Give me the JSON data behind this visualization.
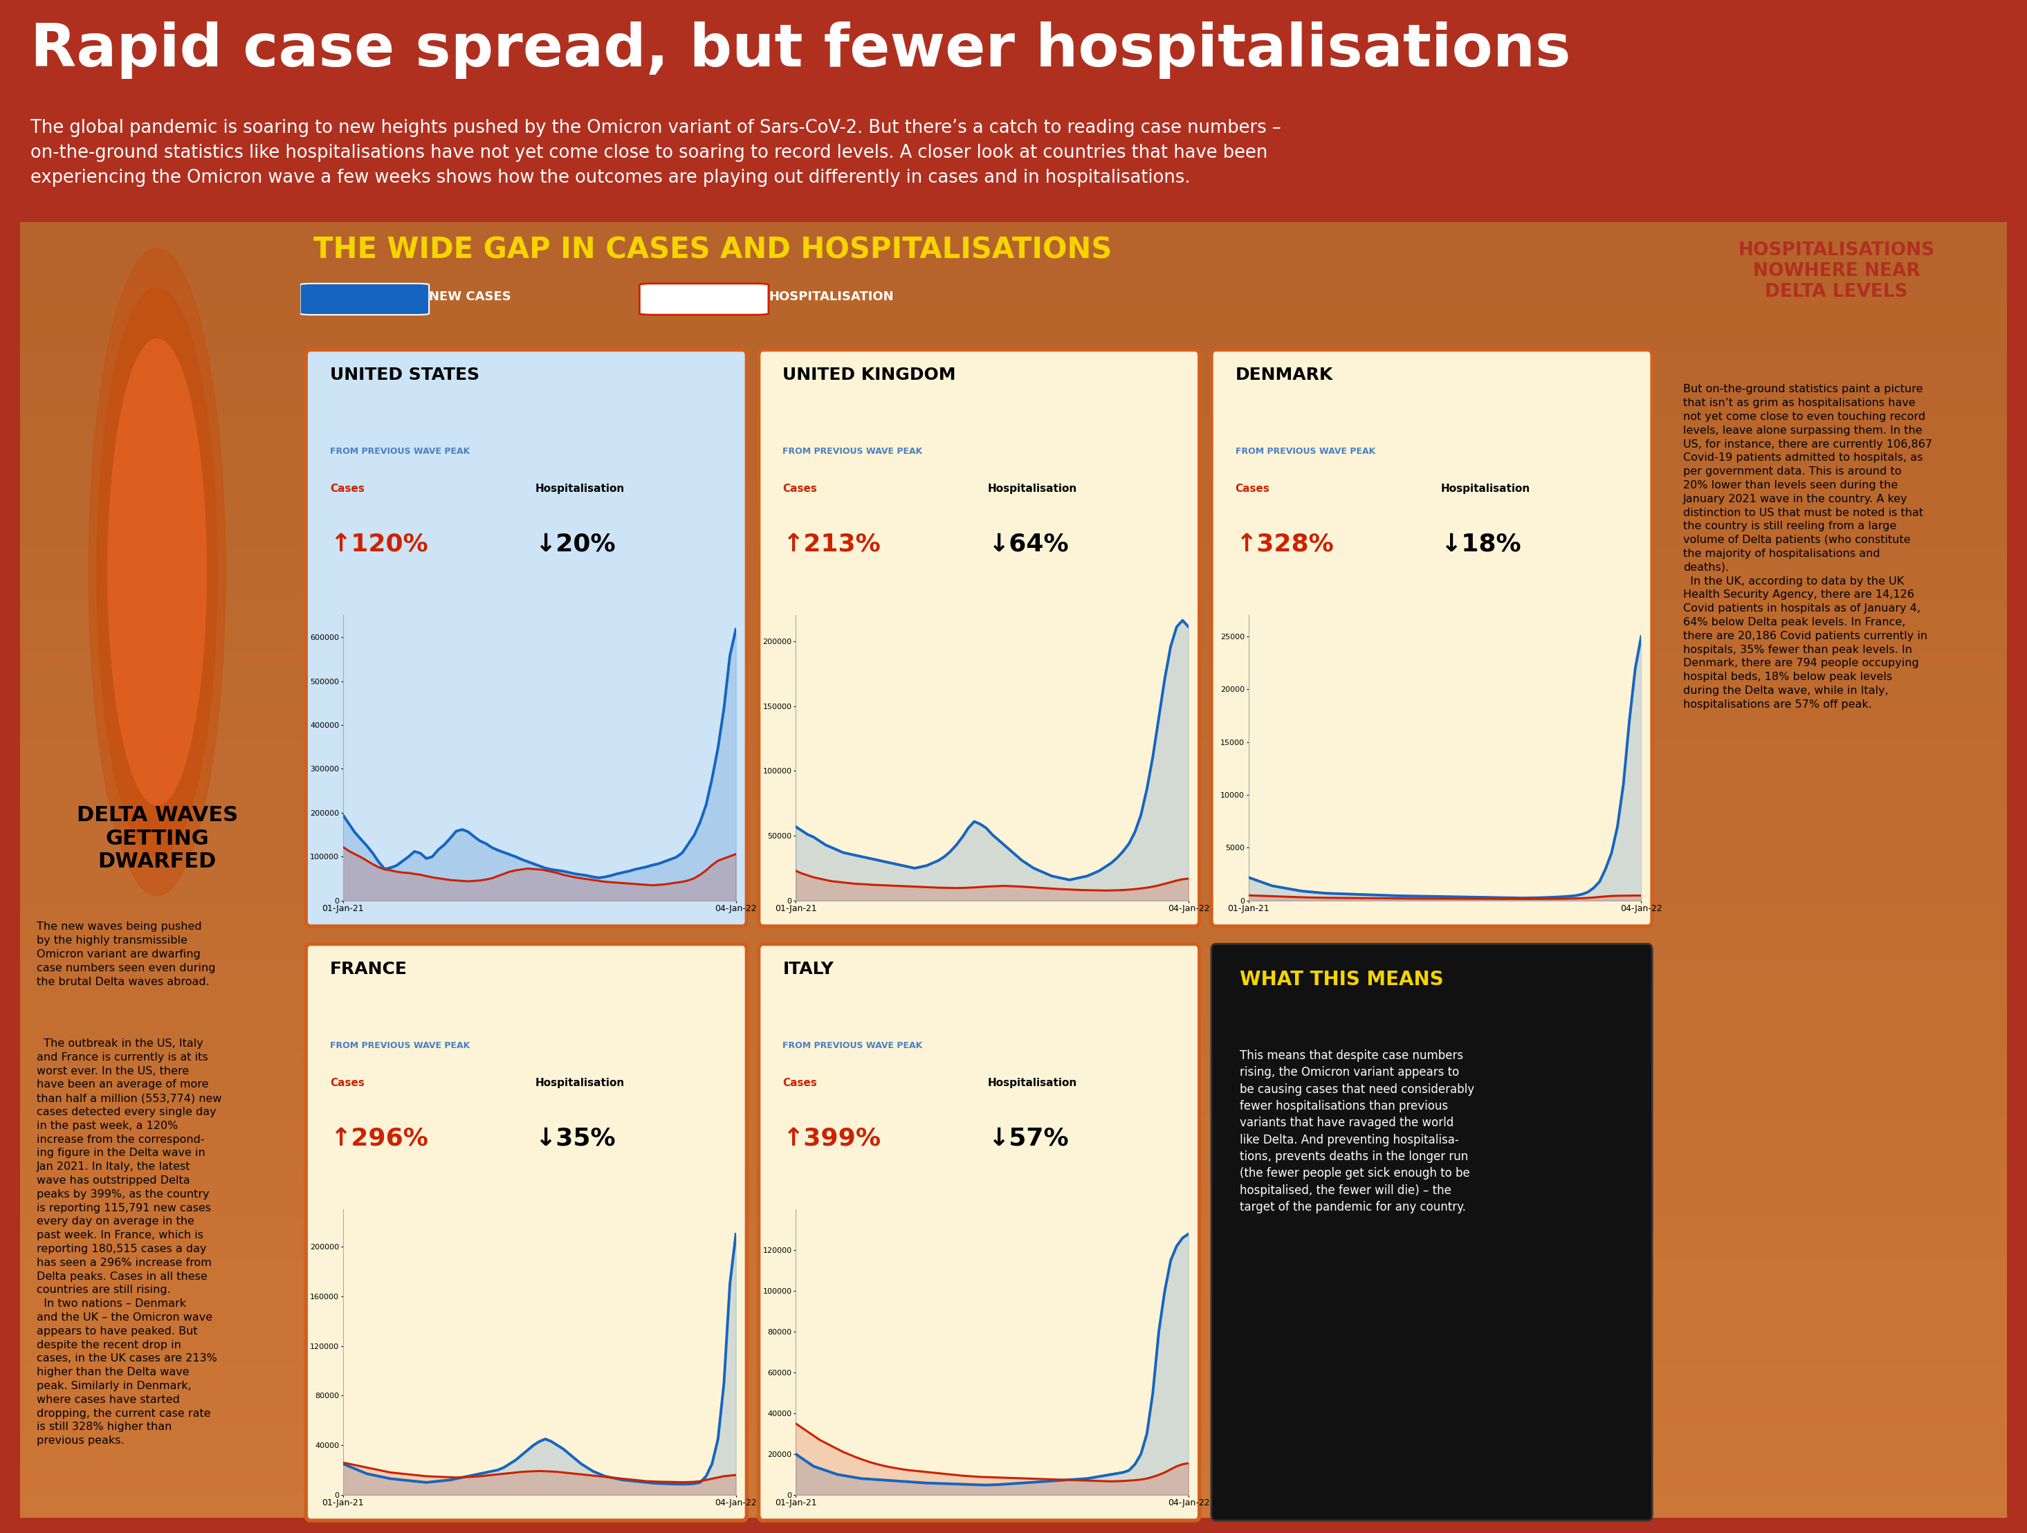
{
  "title": "Rapid case spread, but fewer hospitalisations",
  "subtitle": "The global pandemic is soaring to new heights pushed by the Omicron variant of Sars-CoV-2. But there’s a catch to reading case numbers –\non-the-ground statistics like hospitalisations have not yet come close to soaring to record levels. A closer look at countries that have been\nexperiencing the Omicron wave a few weeks shows how the outcomes are playing out differently in cases and in hospitalisations.",
  "section_title": "THE WIDE GAP IN CASES AND HOSPITALISATIONS",
  "legend_cases": "NEW CASES",
  "legend_hosp": "HOSPITALISATION",
  "bg_main": "#b03020",
  "bg_chart_blue": "#cce4f5",
  "bg_chart_yellow": "#fdf4d8",
  "bg_left": "#f5e8cc",
  "bg_right": "#f5e8cc",
  "bg_black": "#111111",
  "countries": [
    {
      "name": "UNITED STATES",
      "flag": "US",
      "cases_pct": "120%",
      "hosp_pct": "20%",
      "cases_up": true,
      "hosp_up": false,
      "ylim": [
        0,
        650000
      ],
      "yticks": [
        0,
        100000,
        200000,
        300000,
        400000,
        500000,
        600000
      ],
      "bg": "#cce4f5",
      "new_cases": [
        195000,
        175000,
        155000,
        140000,
        125000,
        108000,
        88000,
        72000,
        75000,
        80000,
        90000,
        100000,
        112000,
        108000,
        96000,
        100000,
        116000,
        127000,
        142000,
        158000,
        162000,
        157000,
        146000,
        136000,
        130000,
        121000,
        115000,
        110000,
        105000,
        100000,
        94000,
        89000,
        84000,
        79000,
        74000,
        71000,
        69000,
        67000,
        64000,
        61000,
        59000,
        57000,
        54000,
        52000,
        54000,
        57000,
        61000,
        64000,
        67000,
        71000,
        74000,
        77000,
        81000,
        84000,
        89000,
        94000,
        99000,
        109000,
        129000,
        149000,
        179000,
        218000,
        278000,
        348000,
        438000,
        558000,
        618000
      ],
      "hosp": [
        122000,
        113000,
        106000,
        99000,
        91000,
        83000,
        76000,
        71000,
        69000,
        66000,
        64000,
        63000,
        61000,
        59000,
        56000,
        53000,
        51000,
        49000,
        47000,
        46000,
        45000,
        44000,
        45000,
        46000,
        48000,
        51000,
        56000,
        61000,
        66000,
        69000,
        71000,
        73000,
        72000,
        71000,
        69000,
        66000,
        63000,
        59000,
        56000,
        53000,
        51000,
        49000,
        47000,
        45000,
        43000,
        42000,
        41000,
        40000,
        39000,
        38000,
        37000,
        36000,
        35000,
        36000,
        37000,
        39000,
        41000,
        43000,
        46000,
        51000,
        59000,
        69000,
        81000,
        91000,
        96000,
        101000,
        106000
      ]
    },
    {
      "name": "UNITED KINGDOM",
      "flag": "UK",
      "cases_pct": "213%",
      "hosp_pct": "64%",
      "cases_up": true,
      "hosp_up": false,
      "ylim": [
        0,
        220000
      ],
      "yticks": [
        0,
        50000,
        100000,
        150000,
        200000
      ],
      "bg": "#fdf4d8",
      "new_cases": [
        57000,
        54000,
        51000,
        49000,
        46000,
        43000,
        41000,
        39000,
        37000,
        36000,
        35000,
        34000,
        33000,
        32000,
        31000,
        30000,
        29000,
        28000,
        27000,
        26000,
        25000,
        26000,
        27000,
        29000,
        31000,
        34000,
        38000,
        43000,
        49000,
        56000,
        61000,
        59000,
        56000,
        51000,
        47000,
        43000,
        39000,
        35000,
        31000,
        28000,
        25000,
        23000,
        21000,
        19000,
        18000,
        17000,
        16000,
        17000,
        18000,
        19000,
        21000,
        23000,
        26000,
        29000,
        33000,
        38000,
        44000,
        53000,
        66000,
        86000,
        111000,
        141000,
        171000,
        196000,
        211000,
        216000,
        211000
      ],
      "hosp": [
        23000,
        21000,
        19500,
        18000,
        17000,
        16000,
        15000,
        14500,
        14000,
        13500,
        13000,
        12800,
        12500,
        12200,
        12000,
        11800,
        11600,
        11400,
        11200,
        11000,
        10800,
        10600,
        10400,
        10200,
        10000,
        9900,
        9800,
        9700,
        9800,
        10000,
        10200,
        10500,
        10800,
        11000,
        11200,
        11400,
        11200,
        11000,
        10800,
        10500,
        10200,
        9900,
        9600,
        9300,
        9000,
        8800,
        8600,
        8400,
        8200,
        8100,
        8000,
        7900,
        7800,
        7900,
        8000,
        8200,
        8500,
        8900,
        9400,
        10000,
        10800,
        11800,
        13000,
        14200,
        15500,
        16500,
        17000
      ]
    },
    {
      "name": "DENMARK",
      "flag": "DK",
      "cases_pct": "328%",
      "hosp_pct": "18%",
      "cases_up": true,
      "hosp_up": false,
      "ylim": [
        0,
        27000
      ],
      "yticks": [
        0,
        5000,
        10000,
        15000,
        20000,
        25000
      ],
      "bg": "#fdf4d8",
      "new_cases": [
        2200,
        2000,
        1800,
        1600,
        1400,
        1300,
        1200,
        1100,
        1000,
        900,
        850,
        800,
        750,
        700,
        680,
        660,
        640,
        620,
        600,
        580,
        560,
        540,
        520,
        500,
        480,
        460,
        450,
        440,
        430,
        420,
        410,
        400,
        390,
        380,
        370,
        360,
        350,
        340,
        330,
        320,
        310,
        300,
        290,
        280,
        270,
        260,
        250,
        260,
        270,
        280,
        300,
        320,
        350,
        380,
        420,
        480,
        600,
        800,
        1200,
        1800,
        3000,
        4500,
        7000,
        11000,
        17000,
        22000,
        25000
      ],
      "hosp": [
        500,
        480,
        460,
        440,
        420,
        400,
        380,
        360,
        340,
        320,
        305,
        290,
        280,
        270,
        265,
        260,
        255,
        250,
        245,
        240,
        235,
        230,
        225,
        220,
        215,
        210,
        205,
        200,
        198,
        196,
        194,
        192,
        190,
        188,
        186,
        184,
        182,
        180,
        178,
        176,
        174,
        172,
        170,
        168,
        166,
        164,
        162,
        160,
        162,
        165,
        168,
        172,
        178,
        185,
        195,
        210,
        230,
        260,
        300,
        350,
        400,
        440,
        460,
        470,
        475,
        480,
        485
      ]
    },
    {
      "name": "FRANCE",
      "flag": "FR",
      "cases_pct": "296%",
      "hosp_pct": "35%",
      "cases_up": true,
      "hosp_up": false,
      "ylim": [
        0,
        230000
      ],
      "yticks": [
        0,
        40000,
        80000,
        120000,
        160000,
        200000
      ],
      "bg": "#fdf4d8",
      "new_cases": [
        25000,
        23000,
        21000,
        19000,
        17000,
        16000,
        15000,
        14000,
        13000,
        12500,
        12000,
        11500,
        11000,
        10500,
        10000,
        10500,
        11000,
        11500,
        12000,
        13000,
        14000,
        15000,
        16000,
        17000,
        18000,
        19000,
        20000,
        22000,
        25000,
        28000,
        32000,
        36000,
        40000,
        43000,
        45000,
        43000,
        40000,
        37000,
        33000,
        29000,
        25000,
        22000,
        19000,
        17000,
        15000,
        14000,
        13000,
        12000,
        11500,
        11000,
        10500,
        10000,
        9500,
        9200,
        9000,
        8800,
        8700,
        8600,
        8700,
        9000,
        10000,
        15000,
        25000,
        45000,
        90000,
        170000,
        210000
      ],
      "hosp": [
        26000,
        25000,
        24000,
        23000,
        22000,
        21000,
        20000,
        19000,
        18000,
        17500,
        17000,
        16500,
        16000,
        15500,
        15000,
        14800,
        14600,
        14400,
        14200,
        14000,
        14200,
        14400,
        14600,
        15000,
        15500,
        16000,
        16500,
        17000,
        17500,
        18000,
        18500,
        18800,
        19000,
        19200,
        19000,
        18800,
        18500,
        18000,
        17500,
        17000,
        16500,
        16000,
        15500,
        15000,
        14500,
        14000,
        13500,
        13000,
        12500,
        12000,
        11500,
        11000,
        10800,
        10600,
        10500,
        10400,
        10300,
        10200,
        10300,
        10500,
        11000,
        12000,
        13000,
        14000,
        15000,
        15500,
        16000
      ]
    },
    {
      "name": "ITALY",
      "flag": "IT",
      "cases_pct": "399%",
      "hosp_pct": "57%",
      "cases_up": true,
      "hosp_up": false,
      "ylim": [
        0,
        140000
      ],
      "yticks": [
        0,
        20000,
        40000,
        60000,
        80000,
        100000,
        120000
      ],
      "bg": "#fdf4d8",
      "new_cases": [
        20000,
        18000,
        16000,
        14000,
        13000,
        12000,
        11000,
        10000,
        9500,
        9000,
        8500,
        8000,
        7800,
        7600,
        7400,
        7200,
        7000,
        6800,
        6600,
        6400,
        6200,
        6000,
        5800,
        5700,
        5600,
        5500,
        5400,
        5300,
        5200,
        5100,
        5000,
        4900,
        4800,
        4900,
        5000,
        5200,
        5400,
        5600,
        5800,
        6000,
        6200,
        6400,
        6600,
        6800,
        7000,
        7200,
        7400,
        7600,
        7800,
        8000,
        8500,
        9000,
        9500,
        10000,
        10500,
        11000,
        12000,
        15000,
        20000,
        30000,
        50000,
        80000,
        100000,
        115000,
        122000,
        126000,
        128000
      ],
      "hosp": [
        35000,
        33000,
        31000,
        29000,
        27000,
        25500,
        24000,
        22500,
        21000,
        19800,
        18600,
        17500,
        16500,
        15600,
        14800,
        14100,
        13500,
        13000,
        12500,
        12100,
        11800,
        11500,
        11200,
        10900,
        10600,
        10300,
        10000,
        9700,
        9400,
        9200,
        9000,
        8800,
        8700,
        8600,
        8500,
        8400,
        8300,
        8200,
        8100,
        8000,
        7900,
        7800,
        7700,
        7600,
        7500,
        7400,
        7300,
        7200,
        7100,
        7000,
        6900,
        6800,
        6700,
        6600,
        6700,
        6800,
        7000,
        7200,
        7500,
        8000,
        8800,
        9800,
        11000,
        12500,
        14000,
        15000,
        15500
      ]
    }
  ],
  "left_panel_title": "DELTA WAVES\nGETTING\nDWARFED",
  "left_panel_text1": "The new waves being pushed\nby the highly transmissible\nOmicron variant are dwarfing\ncase numbers seen even during\nthe brutal Delta waves abroad.",
  "left_panel_text2": "  The outbreak in the US, Italy\nand France is currently is at its\nworst ever. In the US, there\nhave been an average of more\nthan half a million (553,774) new\ncases detected every single day\nin the past week, a 120%\nincrease from the correspond-\ning figure in the Delta wave in\nJan 2021. In Italy, the latest\nwave has outstripped Delta\npeaks by 399%, as the country\nis reporting 115,791 new cases\nevery day on average in the\npast week. In France, which is\nreporting 180,515 cases a day\nhas seen a 296% increase from\nDelta peaks. Cases in all these\ncountries are still rising.\n  In two nations – Denmark\nand the UK – the Omicron wave\nappears to have peaked. But\ndespite the recent drop in\ncases, in the UK cases are 213%\nhigher than the Delta wave\npeak. Similarly in Denmark,\nwhere cases have started\ndropping, the current case rate\nis still 328% higher than\nprevious peaks.",
  "right_panel_title": "HOSPITALISATIONS\nNOWHERE NEAR\nDELTA LEVELS",
  "right_panel_text": "But on-the-ground statistics paint a picture\nthat isn’t as grim as hospitalisations have\nnot yet come close to even touching record\nlevels, leave alone surpassing them. In the\nUS, for instance, there are currently 106,867\nCovid-19 patients admitted to hospitals, as\nper government data. This is around to\n20% lower than levels seen during the\nJanuary 2021 wave in the country. A key\ndistinction to US that must be noted is that\nthe country is still reeling from a large\nvolume of Delta patients (who constitute\nthe majority of hospitalisations and\ndeaths).\n  In the UK, according to data by the UK\nHealth Security Agency, there are 14,126\nCovid patients in hospitals as of January 4,\n64% below Delta peak levels. In France,\nthere are 20,186 Covid patients currently in\nhospitals, 35% fewer than peak levels. In\nDenmark, there are 794 people occupying\nhospital beds, 18% below peak levels\nduring the Delta wave, while in Italy,\nhospitalisations are 57% off peak.",
  "what_this_means_title": "WHAT THIS MEANS",
  "what_this_means_text": "This means that despite case numbers\nrising, the Omicron variant appears to\nbe causing cases that need considerably\nfewer hospitalisations than previous\nvariants that have ravaged the world\nlike Delta. And preventing hospitalisa-\ntions, prevents deaths in the longer run\n(the fewer people get sick enough to be\nhospitalised, the fewer will die) – the\ntarget of the pandemic for any country.",
  "cases_color": "#1565c0",
  "hosp_color": "#cc2200",
  "x_label_left": "01-Jan-21",
  "x_label_right": "04-Jan-22",
  "from_prev_label": "FROM PREVIOUS WAVE PEAK",
  "from_prev_color": "#4a7fc1"
}
